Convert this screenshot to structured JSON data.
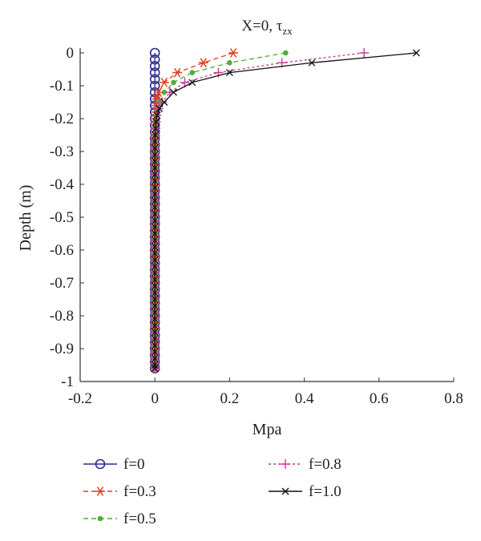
{
  "chart_data": {
    "type": "line",
    "title": "X=0, τ",
    "title_sub": "zx",
    "xlabel": "Mpa",
    "ylabel": "Depth (m)",
    "xlim": [
      -0.2,
      0.8
    ],
    "ylim": [
      -1,
      0
    ],
    "xticks": [
      -0.2,
      0,
      0.2,
      0.4,
      0.6,
      0.8
    ],
    "xtick_labels": [
      "-0.2",
      "0",
      "0.2",
      "0.4",
      "0.6",
      "0.8"
    ],
    "yticks": [
      0,
      -0.1,
      -0.2,
      -0.3,
      -0.4,
      -0.5,
      -0.6,
      -0.7,
      -0.8,
      -0.9,
      -1
    ],
    "ytick_labels": [
      "0",
      "-0.1",
      "-0.2",
      "-0.3",
      "-0.4",
      "-0.5",
      "-0.6",
      "-0.7",
      "-0.8",
      "-0.9",
      "-1"
    ],
    "grid": false,
    "legend_position": "bottom",
    "series": [
      {
        "name": "f=0",
        "color": "#2b2e8c",
        "marker": "circle",
        "dash": "solid",
        "x": [
          0,
          0,
          0,
          0,
          0,
          0,
          0,
          0,
          0,
          0,
          0,
          0,
          0,
          0,
          0,
          0,
          0,
          0,
          0,
          0,
          0,
          0,
          0,
          0,
          0,
          0,
          0,
          0,
          0,
          0,
          0,
          0,
          0,
          0,
          0,
          0,
          0,
          0,
          0,
          0,
          0,
          0,
          0,
          0,
          0,
          0,
          0,
          0,
          0
        ],
        "y": [
          0,
          -0.02,
          -0.04,
          -0.06,
          -0.08,
          -0.1,
          -0.12,
          -0.14,
          -0.16,
          -0.18,
          -0.2,
          -0.22,
          -0.24,
          -0.26,
          -0.28,
          -0.3,
          -0.32,
          -0.34,
          -0.36,
          -0.38,
          -0.4,
          -0.42,
          -0.44,
          -0.46,
          -0.48,
          -0.5,
          -0.52,
          -0.54,
          -0.56,
          -0.58,
          -0.6,
          -0.62,
          -0.64,
          -0.66,
          -0.68,
          -0.7,
          -0.72,
          -0.74,
          -0.76,
          -0.78,
          -0.8,
          -0.82,
          -0.84,
          -0.86,
          -0.88,
          -0.9,
          -0.92,
          -0.94,
          -0.96
        ]
      },
      {
        "name": "f=0.3",
        "color": "#e0401c",
        "marker": "asterisk",
        "dash": "dashed",
        "x": [
          0.21,
          0.13,
          0.06,
          0.025,
          0.01,
          0.005,
          0.003,
          0.002,
          0.001,
          0,
          0,
          0,
          0,
          0,
          0,
          0,
          0,
          0,
          0,
          0,
          0,
          0,
          0,
          0,
          0,
          0,
          0,
          0,
          0,
          0,
          0,
          0,
          0,
          0,
          0,
          0,
          0,
          0,
          0,
          0,
          0,
          0,
          0,
          0,
          0,
          0,
          0,
          0
        ],
        "y": [
          0,
          -0.03,
          -0.06,
          -0.09,
          -0.12,
          -0.14,
          -0.16,
          -0.18,
          -0.2,
          -0.22,
          -0.24,
          -0.26,
          -0.28,
          -0.3,
          -0.32,
          -0.34,
          -0.36,
          -0.38,
          -0.4,
          -0.42,
          -0.44,
          -0.46,
          -0.48,
          -0.5,
          -0.52,
          -0.54,
          -0.56,
          -0.58,
          -0.6,
          -0.62,
          -0.64,
          -0.66,
          -0.68,
          -0.7,
          -0.72,
          -0.74,
          -0.76,
          -0.78,
          -0.8,
          -0.82,
          -0.84,
          -0.86,
          -0.88,
          -0.9,
          -0.92,
          -0.94,
          -0.96,
          -0.96
        ]
      },
      {
        "name": "f=0.5",
        "color": "#4fae3a",
        "marker": "dot",
        "dash": "dashed",
        "x": [
          0.35,
          0.2,
          0.1,
          0.05,
          0.025,
          0.012,
          0.006,
          0.003,
          0.002,
          0.001,
          0,
          0,
          0,
          0,
          0,
          0,
          0,
          0,
          0,
          0,
          0,
          0,
          0,
          0,
          0,
          0,
          0,
          0,
          0,
          0,
          0,
          0,
          0,
          0,
          0,
          0,
          0,
          0,
          0,
          0,
          0,
          0,
          0,
          0,
          0,
          0,
          0,
          0
        ],
        "y": [
          0,
          -0.03,
          -0.06,
          -0.09,
          -0.12,
          -0.15,
          -0.17,
          -0.19,
          -0.21,
          -0.23,
          -0.25,
          -0.27,
          -0.29,
          -0.31,
          -0.33,
          -0.35,
          -0.37,
          -0.39,
          -0.41,
          -0.43,
          -0.45,
          -0.47,
          -0.49,
          -0.51,
          -0.53,
          -0.55,
          -0.57,
          -0.59,
          -0.61,
          -0.63,
          -0.65,
          -0.67,
          -0.69,
          -0.71,
          -0.73,
          -0.75,
          -0.77,
          -0.79,
          -0.81,
          -0.83,
          -0.85,
          -0.87,
          -0.89,
          -0.91,
          -0.93,
          -0.95,
          -0.96,
          -0.96
        ]
      },
      {
        "name": "f=0.8",
        "color": "#c43c9a",
        "marker": "plus",
        "dash": "dotted",
        "x": [
          0.56,
          0.34,
          0.17,
          0.08,
          0.04,
          0.02,
          0.01,
          0.005,
          0.003,
          0.002,
          0.001,
          0,
          0,
          0,
          0,
          0,
          0,
          0,
          0,
          0,
          0,
          0,
          0,
          0,
          0,
          0,
          0,
          0,
          0,
          0,
          0,
          0,
          0,
          0,
          0,
          0,
          0,
          0,
          0,
          0,
          0,
          0,
          0,
          0,
          0,
          0,
          0,
          0
        ],
        "y": [
          0,
          -0.03,
          -0.06,
          -0.09,
          -0.12,
          -0.15,
          -0.17,
          -0.19,
          -0.21,
          -0.23,
          -0.25,
          -0.27,
          -0.29,
          -0.31,
          -0.33,
          -0.35,
          -0.37,
          -0.39,
          -0.41,
          -0.43,
          -0.45,
          -0.47,
          -0.49,
          -0.51,
          -0.53,
          -0.55,
          -0.57,
          -0.59,
          -0.61,
          -0.63,
          -0.65,
          -0.67,
          -0.69,
          -0.71,
          -0.73,
          -0.75,
          -0.77,
          -0.79,
          -0.81,
          -0.83,
          -0.85,
          -0.87,
          -0.89,
          -0.91,
          -0.93,
          -0.95,
          -0.96,
          -0.96
        ]
      },
      {
        "name": "f=1.0",
        "color": "#111111",
        "marker": "cross",
        "dash": "solid",
        "x": [
          0.7,
          0.42,
          0.2,
          0.1,
          0.05,
          0.025,
          0.012,
          0.006,
          0.003,
          0.002,
          0.001,
          0,
          0,
          0,
          0,
          0,
          0,
          0,
          0,
          0,
          0,
          0,
          0,
          0,
          0,
          0,
          0,
          0,
          0,
          0,
          0,
          0,
          0,
          0,
          0,
          0,
          0,
          0,
          0,
          0,
          0,
          0,
          0,
          0,
          0,
          0,
          0,
          0
        ],
        "y": [
          0,
          -0.03,
          -0.06,
          -0.09,
          -0.12,
          -0.15,
          -0.17,
          -0.19,
          -0.21,
          -0.23,
          -0.25,
          -0.27,
          -0.29,
          -0.31,
          -0.33,
          -0.35,
          -0.37,
          -0.39,
          -0.41,
          -0.43,
          -0.45,
          -0.47,
          -0.49,
          -0.51,
          -0.53,
          -0.55,
          -0.57,
          -0.59,
          -0.61,
          -0.63,
          -0.65,
          -0.67,
          -0.69,
          -0.71,
          -0.73,
          -0.75,
          -0.77,
          -0.79,
          -0.81,
          -0.83,
          -0.85,
          -0.87,
          -0.89,
          -0.91,
          -0.93,
          -0.95,
          -0.96,
          -0.96
        ]
      }
    ]
  }
}
